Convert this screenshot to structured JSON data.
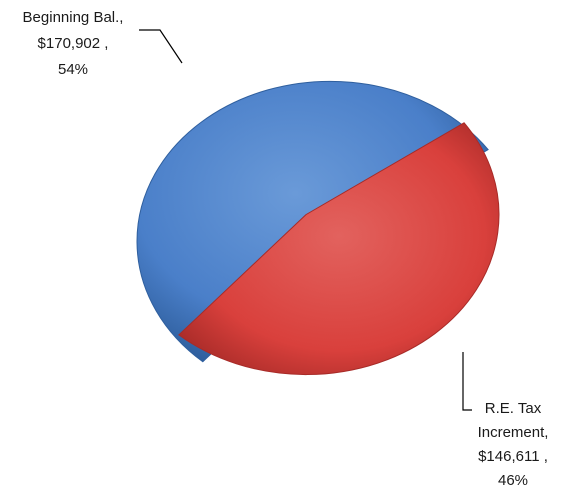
{
  "chart_data": {
    "type": "pie",
    "title": "",
    "slices": [
      {
        "category": "Beginning Bal.",
        "value": 170902,
        "percent": 54,
        "label_lines": [
          "Beginning Bal.,",
          "$170,902 ,",
          "54%"
        ],
        "color": "#4a7fc9"
      },
      {
        "category": "R.E. Tax Increment",
        "value": 146611,
        "percent": 46,
        "label_lines": [
          "R.E. Tax",
          "Increment,",
          "$146,611 ,",
          "46%"
        ],
        "color": "#d9403c"
      }
    ],
    "legend": "none",
    "style": "exploded 3D-shaded pie"
  }
}
